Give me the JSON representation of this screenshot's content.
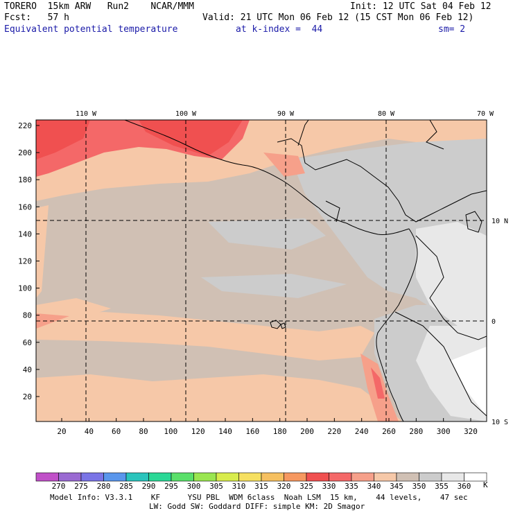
{
  "header": {
    "model": "TORERO  15km ARW   Run2    NCAR/MMM",
    "init": "Init: 12 UTC Sat 04 Feb 12",
    "fcst": "Fcst:   57 h",
    "valid": "Valid: 21 UTC Mon 06 Feb 12 (15 CST Mon 06 Feb 12)",
    "field": "Equivalent potential temperature",
    "kindex": "at k-index =  44",
    "smooth": "sm= 2"
  },
  "map": {
    "lon_labels": [
      "110 W",
      "100 W",
      "90 W",
      "80 W",
      "70 W"
    ],
    "lat_labels": [
      "10 N",
      "0",
      "10 S"
    ],
    "y_ticks": [
      20,
      40,
      60,
      80,
      100,
      120,
      140,
      160,
      180,
      200,
      220
    ],
    "x_ticks": [
      20,
      40,
      60,
      80,
      100,
      120,
      140,
      160,
      180,
      200,
      220,
      240,
      260,
      280,
      300,
      320
    ]
  },
  "legend": {
    "values": [
      "270",
      "275",
      "280",
      "285",
      "290",
      "295",
      "300",
      "305",
      "310",
      "315",
      "320",
      "325",
      "330",
      "335",
      "340",
      "345",
      "350",
      "355",
      "360"
    ],
    "unit": "K",
    "colors": [
      "#c050c8",
      "#9a6ad2",
      "#7a74e6",
      "#5a96ec",
      "#2ac4bc",
      "#2ad896",
      "#5ae06a",
      "#9ae650",
      "#d8ec4c",
      "#f6e060",
      "#f6c060",
      "#f69860",
      "#f05050",
      "#f46868",
      "#f6a08a",
      "#f6c8a8",
      "#d0c0b4",
      "#cccccc",
      "#e8e8e8",
      "#ffffff"
    ]
  },
  "footer": {
    "line1": "Model Info: V3.3.1    KF      YSU PBL  WDM 6class  Noah LSM  15 km,    44 levels,    47 sec",
    "line2": "LW: Godd SW: Goddard DIFF: simple KM: 2D Smagor"
  }
}
